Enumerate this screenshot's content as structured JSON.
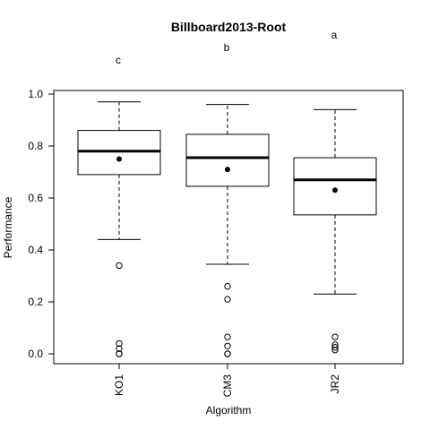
{
  "chart_data": {
    "type": "box",
    "title": "Billboard2013-Root",
    "xlabel": "Algorithm",
    "ylabel": "Performance",
    "ylim": [
      -0.04,
      1.04
    ],
    "yticks": [
      "0.0",
      "0.2",
      "0.4",
      "0.6",
      "0.8",
      "1.0"
    ],
    "categories": [
      "KO1",
      "CM3",
      "JR2"
    ],
    "groups": [
      {
        "name": "KO1",
        "letter": "c",
        "whisker_low": 0.44,
        "q1": 0.69,
        "median": 0.78,
        "q3": 0.86,
        "whisker_high": 0.97,
        "mean": 0.75,
        "outliers": [
          0.34,
          0.04,
          0.02,
          0.0,
          0.0
        ]
      },
      {
        "name": "CM3",
        "letter": "b",
        "whisker_low": 0.345,
        "q1": 0.645,
        "median": 0.755,
        "q3": 0.845,
        "whisker_high": 0.96,
        "mean": 0.71,
        "outliers": [
          0.26,
          0.21,
          0.065,
          0.03,
          0.0,
          0.0
        ]
      },
      {
        "name": "JR2",
        "letter": "a",
        "whisker_low": 0.23,
        "q1": 0.535,
        "median": 0.67,
        "q3": 0.755,
        "whisker_high": 0.94,
        "mean": 0.63,
        "outliers": [
          0.065,
          0.035,
          0.025,
          0.015
        ]
      }
    ]
  }
}
